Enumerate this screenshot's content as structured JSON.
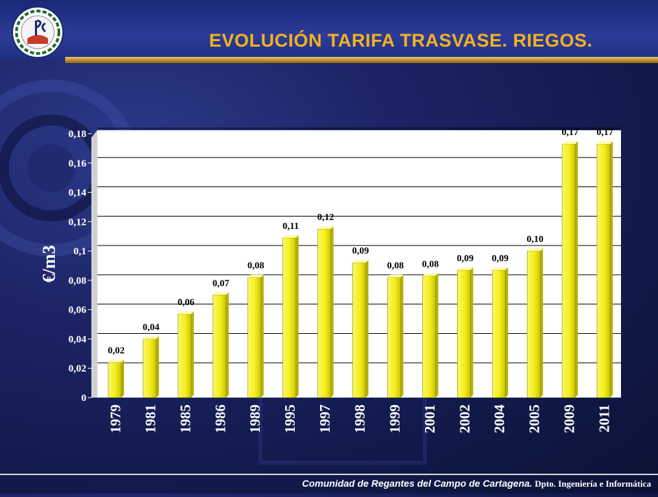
{
  "header": {
    "title": "EVOLUCIÓN TARIFA TRASVASE. RIEGOS."
  },
  "footer": {
    "organization": "Comunidad de Regantes del Campo de Cartagena.",
    "department": "Dpto. Ingeniería e Informática"
  },
  "colors": {
    "title": "#f2b21f",
    "bar_fill": "#f4ef1a",
    "plot_background": "#ffffff",
    "header_band": "#2c3c98",
    "gold_rule": "#c9982e"
  },
  "chart_data": {
    "type": "bar",
    "title": "",
    "xlabel": "",
    "ylabel": "€/m3",
    "ylim": [
      0,
      0.18
    ],
    "yticks": [
      "0",
      "0,02",
      "0,04",
      "0,06",
      "0,08",
      "0,1",
      "0,12",
      "0,14",
      "0,16",
      "0,18"
    ],
    "grid": true,
    "categories": [
      "1979",
      "1981",
      "1985",
      "1986",
      "1989",
      "1995",
      "1997",
      "1998",
      "1999",
      "2001",
      "2002",
      "2004",
      "2005",
      "2009",
      "2011"
    ],
    "values": [
      0.024,
      0.04,
      0.057,
      0.07,
      0.082,
      0.109,
      0.115,
      0.092,
      0.082,
      0.083,
      0.087,
      0.087,
      0.1,
      0.173,
      0.173
    ],
    "data_labels": [
      "0,02",
      "0,04",
      "0,06",
      "0,07",
      "0,08",
      "0,11",
      "0,12",
      "0,09",
      "0,08",
      "0,08",
      "0,09",
      "0,09",
      "0,10",
      "0,17",
      "0,17"
    ]
  }
}
